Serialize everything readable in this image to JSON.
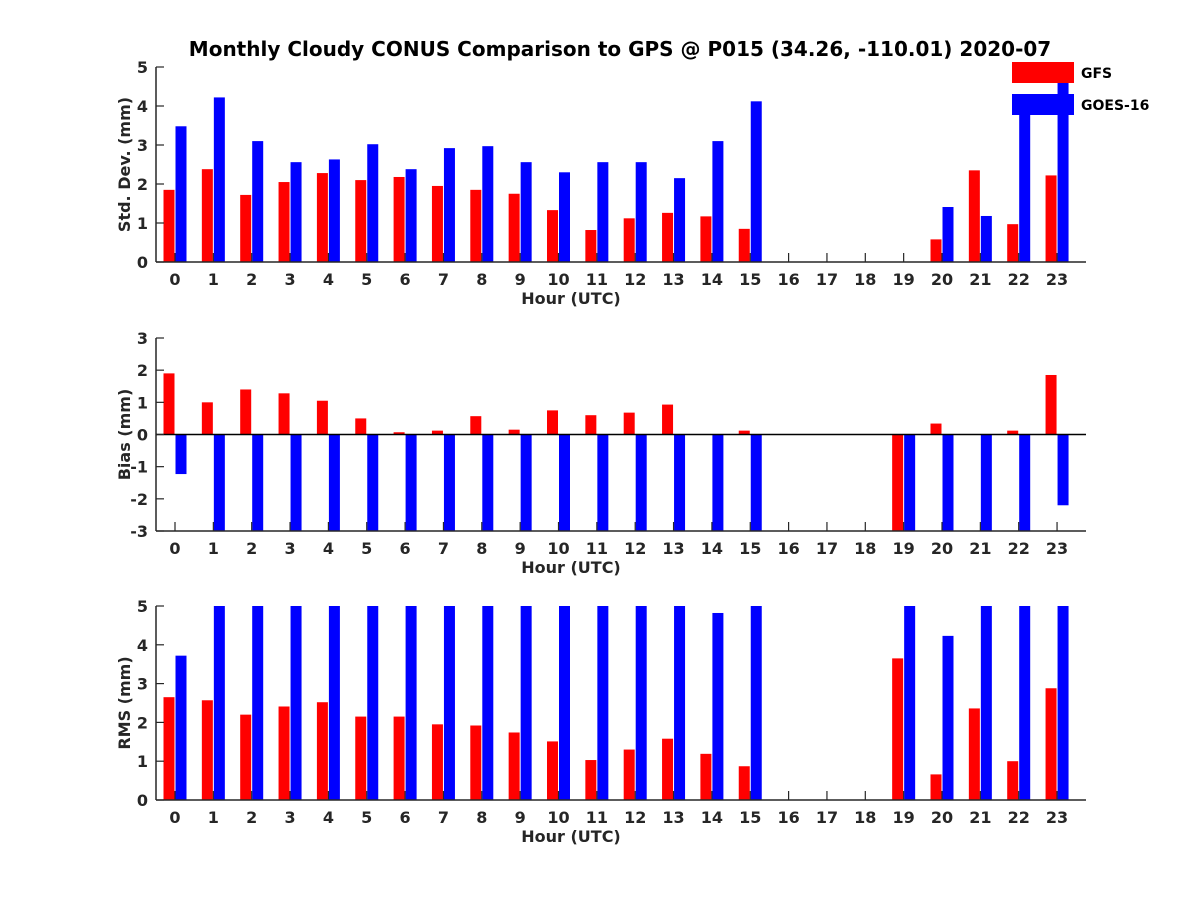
{
  "title": "Monthly Cloudy CONUS Comparison to GPS @ P015 (34.26, -110.01) 2020-07",
  "legend": {
    "placement": "top-right",
    "entries": [
      {
        "name": "GFS",
        "color": "#ff0000"
      },
      {
        "name": "GOES-16",
        "color": "#0000ff"
      }
    ]
  },
  "chart_data": [
    {
      "type": "bar",
      "xlabel": "Hour (UTC)",
      "ylabel": "Std. Dev. (mm)",
      "ylim": [
        0,
        5
      ],
      "yticks": [
        0,
        1,
        2,
        3,
        4,
        5
      ],
      "grid": false,
      "categories": [
        "0",
        "1",
        "2",
        "3",
        "4",
        "5",
        "6",
        "7",
        "8",
        "9",
        "10",
        "11",
        "12",
        "13",
        "14",
        "15",
        "16",
        "17",
        "18",
        "19",
        "20",
        "21",
        "22",
        "23"
      ],
      "series": [
        {
          "name": "GFS",
          "color": "#ff0000",
          "values": [
            1.85,
            2.38,
            1.72,
            2.05,
            2.28,
            2.1,
            2.18,
            1.95,
            1.85,
            1.75,
            1.33,
            0.82,
            1.12,
            1.26,
            1.17,
            0.85,
            null,
            null,
            null,
            null,
            0.58,
            2.35,
            0.97,
            2.22
          ]
        },
        {
          "name": "GOES-16",
          "color": "#0000ff",
          "values": [
            3.48,
            4.22,
            3.1,
            2.56,
            2.63,
            3.02,
            2.38,
            2.92,
            2.97,
            2.56,
            2.3,
            2.56,
            2.56,
            2.15,
            3.1,
            4.12,
            null,
            null,
            null,
            null,
            1.41,
            1.18,
            4.12,
            5.0
          ]
        }
      ]
    },
    {
      "type": "bar",
      "xlabel": "Hour (UTC)",
      "ylabel": "Bias (mm)",
      "ylim": [
        -3,
        3
      ],
      "yticks": [
        -3,
        -2,
        -1,
        0,
        1,
        2,
        3
      ],
      "grid": false,
      "categories": [
        "0",
        "1",
        "2",
        "3",
        "4",
        "5",
        "6",
        "7",
        "8",
        "9",
        "10",
        "11",
        "12",
        "13",
        "14",
        "15",
        "16",
        "17",
        "18",
        "19",
        "20",
        "21",
        "22",
        "23"
      ],
      "series": [
        {
          "name": "GFS",
          "color": "#ff0000",
          "values": [
            1.9,
            1.0,
            1.4,
            1.28,
            1.05,
            0.5,
            0.07,
            0.12,
            0.57,
            0.15,
            0.75,
            0.6,
            0.68,
            0.93,
            0.0,
            0.12,
            null,
            null,
            null,
            -3.0,
            0.34,
            0.0,
            0.12,
            1.85
          ]
        },
        {
          "name": "GOES-16",
          "color": "#0000ff",
          "values": [
            -1.23,
            -3.0,
            -3.0,
            -3.0,
            -3.0,
            -3.0,
            -3.0,
            -3.0,
            -3.0,
            -3.0,
            -3.0,
            -3.0,
            -3.0,
            -3.0,
            -3.0,
            -3.0,
            null,
            null,
            null,
            -3.0,
            -3.0,
            -3.0,
            -3.0,
            -2.2
          ]
        }
      ]
    },
    {
      "type": "bar",
      "xlabel": "Hour (UTC)",
      "ylabel": "RMS (mm)",
      "ylim": [
        0,
        5
      ],
      "yticks": [
        0,
        1,
        2,
        3,
        4,
        5
      ],
      "grid": false,
      "categories": [
        "0",
        "1",
        "2",
        "3",
        "4",
        "5",
        "6",
        "7",
        "8",
        "9",
        "10",
        "11",
        "12",
        "13",
        "14",
        "15",
        "16",
        "17",
        "18",
        "19",
        "20",
        "21",
        "22",
        "23"
      ],
      "series": [
        {
          "name": "GFS",
          "color": "#ff0000",
          "values": [
            2.65,
            2.57,
            2.2,
            2.41,
            2.52,
            2.15,
            2.15,
            1.95,
            1.92,
            1.74,
            1.51,
            1.03,
            1.3,
            1.58,
            1.19,
            0.87,
            null,
            null,
            null,
            3.65,
            0.66,
            2.36,
            1.0,
            2.88
          ]
        },
        {
          "name": "GOES-16",
          "color": "#0000ff",
          "values": [
            3.72,
            5.0,
            5.0,
            5.0,
            5.0,
            5.0,
            5.0,
            5.0,
            5.0,
            5.0,
            5.0,
            5.0,
            5.0,
            5.0,
            4.82,
            5.0,
            null,
            null,
            null,
            5.0,
            4.23,
            5.0,
            5.0,
            5.0
          ]
        }
      ]
    }
  ]
}
